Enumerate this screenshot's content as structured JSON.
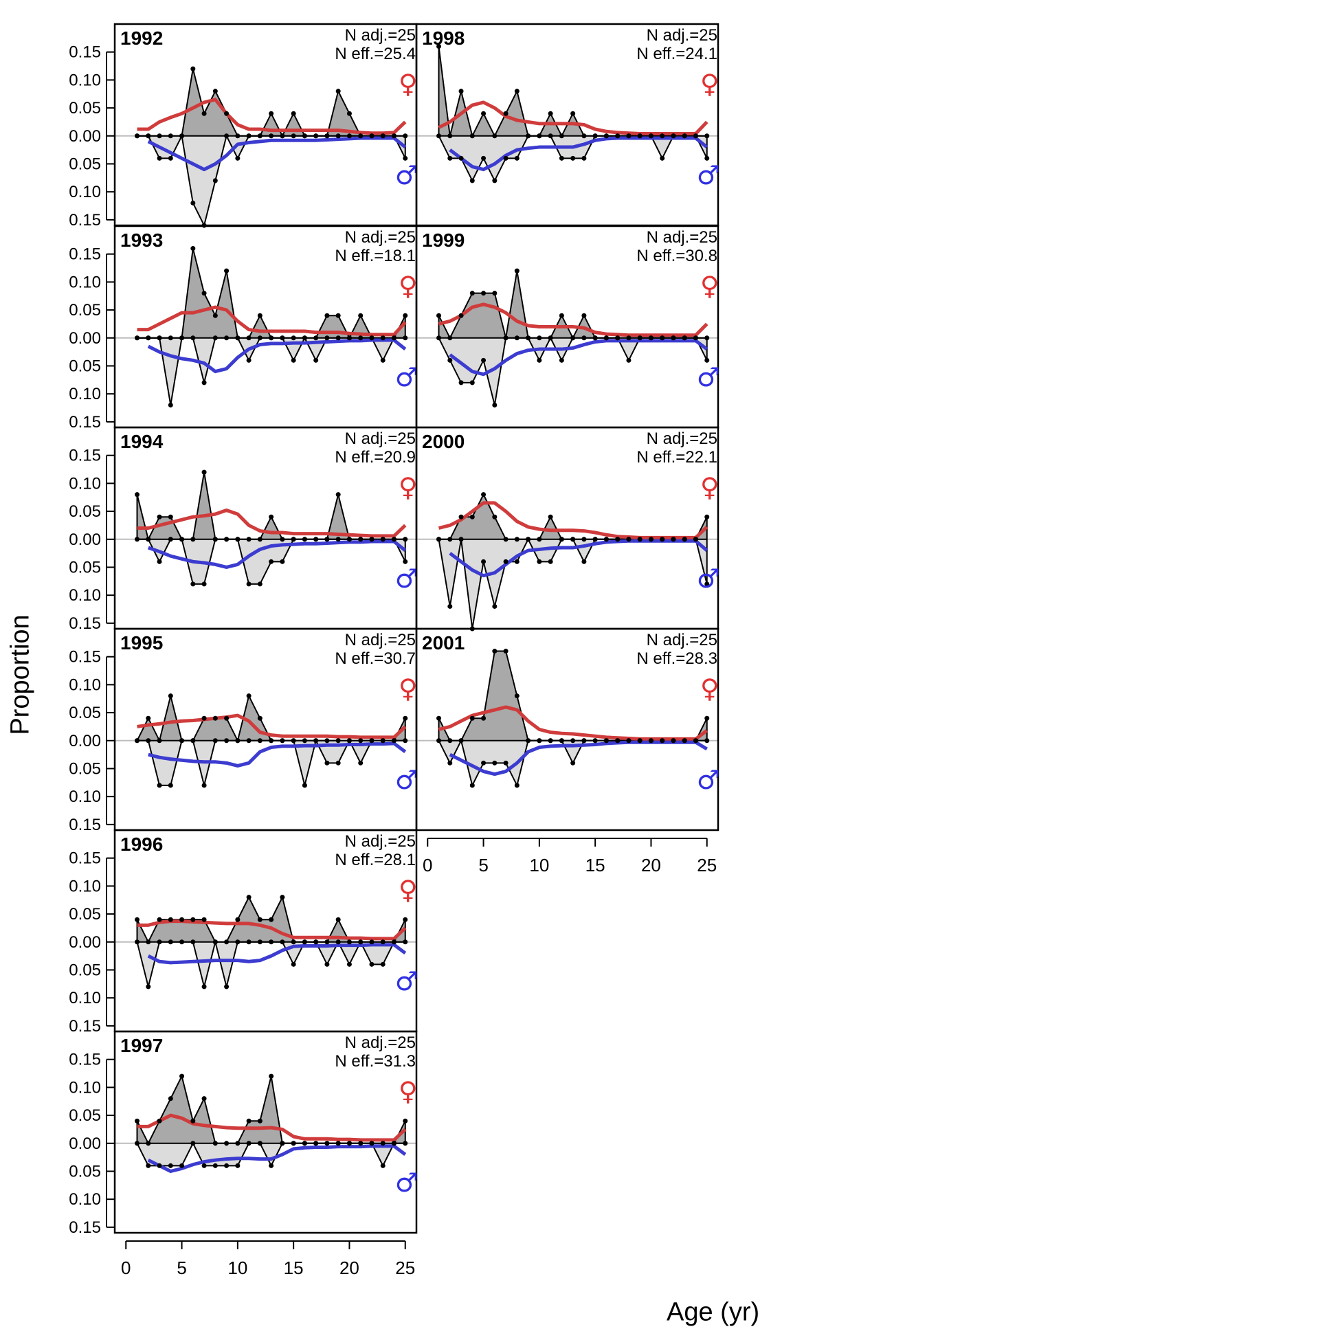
{
  "chart_data": {
    "type": "line",
    "xlabel": "Age (yr)",
    "ylabel": "Proportion",
    "x_ticks": [
      0,
      5,
      10,
      15,
      20,
      25
    ],
    "y_ticks": [
      "0.15",
      "0.10",
      "0.05",
      "0.00",
      "0.05",
      "0.10",
      "0.15"
    ],
    "ylim": [
      -0.16,
      0.2
    ],
    "xlim": [
      -1,
      26
    ],
    "female_symbol": "♀",
    "male_symbol": "♂",
    "colors": {
      "female_line": "#d03c3c",
      "male_line": "#3c3cd0",
      "female_fill": "#a9a9a9",
      "male_fill": "#dcdcdc",
      "female_symbol": "#e23030",
      "male_symbol": "#3030e2",
      "zero_line": "#bdbdbd"
    },
    "ages": [
      1,
      2,
      3,
      4,
      5,
      6,
      7,
      8,
      9,
      10,
      11,
      12,
      13,
      14,
      15,
      16,
      17,
      18,
      19,
      20,
      21,
      22,
      23,
      24,
      25
    ],
    "panels": [
      {
        "year": "1992",
        "n_adj": "N adj.=25",
        "n_eff": "N eff.=25.4",
        "female_obs": [
          0,
          0,
          0,
          0,
          0,
          0.12,
          0.04,
          0.08,
          0.04,
          0,
          0,
          0,
          0.04,
          0,
          0.04,
          0,
          0,
          0,
          0.08,
          0.04,
          0,
          0,
          0,
          0,
          0
        ],
        "male_obs": [
          0,
          0,
          0.04,
          0.04,
          0,
          0.12,
          0.16,
          0.08,
          0,
          0.04,
          0,
          0,
          0,
          0,
          0,
          0,
          0,
          0,
          0,
          0,
          0,
          0,
          0,
          0,
          0.04
        ],
        "female_exp": [
          0.012,
          0.012,
          0.025,
          0.033,
          0.04,
          0.05,
          0.06,
          0.065,
          0.04,
          0.02,
          0.012,
          0.012,
          0.01,
          0.01,
          0.01,
          0.01,
          0.01,
          0.01,
          0.01,
          0.008,
          0.006,
          0.005,
          0.005,
          0.006,
          0.025
        ],
        "male_exp": [
          null,
          0.01,
          0.02,
          0.03,
          0.04,
          0.05,
          0.06,
          0.05,
          0.035,
          0.015,
          0.012,
          0.01,
          0.008,
          0.008,
          0.008,
          0.008,
          0.008,
          0.007,
          0.006,
          0.005,
          0.004,
          0.004,
          0.004,
          0.004,
          0.02
        ]
      },
      {
        "year": "1993",
        "n_adj": "N adj.=25",
        "n_eff": "N eff.=18.1",
        "female_obs": [
          0,
          0,
          0,
          0,
          0,
          0.16,
          0.08,
          0.04,
          0.12,
          0,
          0,
          0.04,
          0,
          0,
          0,
          0,
          0,
          0.04,
          0.04,
          0,
          0.04,
          0,
          0,
          0,
          0.04
        ],
        "male_obs": [
          0,
          0,
          0,
          0.12,
          0,
          0,
          0.08,
          0,
          0,
          0,
          0.04,
          0,
          0,
          0,
          0.04,
          0,
          0.04,
          0,
          0,
          0,
          0,
          0,
          0.04,
          0,
          0
        ],
        "female_exp": [
          0.015,
          0.015,
          0.025,
          0.035,
          0.045,
          0.045,
          0.05,
          0.055,
          0.05,
          0.03,
          0.015,
          0.012,
          0.012,
          0.012,
          0.012,
          0.012,
          0.01,
          0.01,
          0.01,
          0.008,
          0.007,
          0.006,
          0.006,
          0.006,
          0.028
        ],
        "male_exp": [
          null,
          0.015,
          0.025,
          0.032,
          0.037,
          0.04,
          0.045,
          0.06,
          0.055,
          0.035,
          0.02,
          0.012,
          0.01,
          0.01,
          0.009,
          0.009,
          0.008,
          0.007,
          0.006,
          0.005,
          0.005,
          0.004,
          0.004,
          0.004,
          0.02
        ]
      },
      {
        "year": "1994",
        "n_adj": "N adj.=25",
        "n_eff": "N eff.=20.9",
        "female_obs": [
          0.08,
          0,
          0.04,
          0.04,
          0,
          0,
          0.12,
          0,
          0,
          0,
          0,
          0,
          0.04,
          0,
          0,
          0,
          0,
          0,
          0.08,
          0,
          0,
          0,
          0,
          0,
          0
        ],
        "male_obs": [
          0,
          0,
          0.04,
          0,
          0,
          0.08,
          0.08,
          0,
          0,
          0,
          0.08,
          0.08,
          0.04,
          0.04,
          0,
          0,
          0,
          0,
          0,
          0,
          0,
          0,
          0,
          0,
          0.04
        ],
        "female_exp": [
          0.02,
          0.02,
          0.025,
          0.03,
          0.035,
          0.04,
          0.042,
          0.045,
          0.052,
          0.045,
          0.025,
          0.015,
          0.012,
          0.012,
          0.01,
          0.01,
          0.01,
          0.01,
          0.009,
          0.008,
          0.007,
          0.006,
          0.006,
          0.006,
          0.025
        ],
        "male_exp": [
          null,
          0.015,
          0.022,
          0.03,
          0.035,
          0.04,
          0.042,
          0.045,
          0.05,
          0.045,
          0.03,
          0.018,
          0.012,
          0.01,
          0.009,
          0.008,
          0.008,
          0.007,
          0.006,
          0.005,
          0.005,
          0.004,
          0.004,
          0.004,
          0.02
        ]
      },
      {
        "year": "1995",
        "n_adj": "N adj.=25",
        "n_eff": "N eff.=30.7",
        "female_obs": [
          0,
          0.04,
          0,
          0.08,
          0,
          0,
          0.04,
          0.04,
          0.04,
          0,
          0.08,
          0.04,
          0,
          0,
          0,
          0,
          0,
          0,
          0,
          0,
          0,
          0,
          0,
          0,
          0.04
        ],
        "male_obs": [
          0,
          0,
          0.08,
          0.08,
          0,
          0,
          0.08,
          0,
          0,
          0,
          0,
          0,
          0,
          0,
          0,
          0.08,
          0,
          0.04,
          0.04,
          0,
          0.04,
          0,
          0,
          0,
          0
        ],
        "female_exp": [
          0.025,
          0.028,
          0.03,
          0.033,
          0.035,
          0.036,
          0.038,
          0.04,
          0.042,
          0.045,
          0.035,
          0.015,
          0.01,
          0.008,
          0.008,
          0.008,
          0.008,
          0.008,
          0.007,
          0.007,
          0.006,
          0.006,
          0.006,
          0.006,
          0.025
        ],
        "male_exp": [
          null,
          0.025,
          0.03,
          0.033,
          0.035,
          0.037,
          0.038,
          0.038,
          0.04,
          0.045,
          0.04,
          0.02,
          0.012,
          0.01,
          0.01,
          0.009,
          0.009,
          0.008,
          0.008,
          0.007,
          0.007,
          0.006,
          0.006,
          0.005,
          0.02
        ]
      },
      {
        "year": "1996",
        "n_adj": "N adj.=25",
        "n_eff": "N eff.=28.1",
        "female_obs": [
          0.04,
          0,
          0.04,
          0.04,
          0.04,
          0.04,
          0.04,
          0,
          0,
          0.04,
          0.08,
          0.04,
          0.04,
          0.08,
          0,
          0,
          0,
          0,
          0.04,
          0,
          0,
          0,
          0,
          0,
          0.04
        ],
        "male_obs": [
          0,
          0.08,
          0,
          0,
          0,
          0,
          0.08,
          0,
          0.08,
          0,
          0,
          0,
          0,
          0,
          0.04,
          0,
          0,
          0.04,
          0,
          0.04,
          0,
          0.04,
          0.04,
          0,
          0
        ],
        "female_exp": [
          0.03,
          0.03,
          0.035,
          0.037,
          0.037,
          0.036,
          0.035,
          0.034,
          0.033,
          0.033,
          0.033,
          0.03,
          0.025,
          0.015,
          0.008,
          0.008,
          0.008,
          0.008,
          0.008,
          0.007,
          0.007,
          0.006,
          0.006,
          0.006,
          0.025
        ],
        "male_exp": [
          null,
          0.025,
          0.035,
          0.037,
          0.036,
          0.035,
          0.034,
          0.033,
          0.033,
          0.033,
          0.035,
          0.033,
          0.025,
          0.015,
          0.008,
          0.007,
          0.007,
          0.007,
          0.006,
          0.006,
          0.006,
          0.005,
          0.005,
          0.005,
          0.02
        ]
      },
      {
        "year": "1997",
        "n_adj": "N adj.=25",
        "n_eff": "N eff.=31.3",
        "female_obs": [
          0.04,
          0,
          0.04,
          0.08,
          0.12,
          0.04,
          0.08,
          0,
          0,
          0,
          0.04,
          0.04,
          0.12,
          0,
          0,
          0,
          0,
          0,
          0,
          0,
          0,
          0,
          0,
          0,
          0.04
        ],
        "male_obs": [
          0,
          0.04,
          0.04,
          0.04,
          0.04,
          0,
          0.04,
          0.04,
          0.04,
          0.04,
          0,
          0,
          0.04,
          0,
          0,
          0,
          0,
          0,
          0,
          0,
          0,
          0,
          0.04,
          0,
          0
        ],
        "female_exp": [
          0.03,
          0.03,
          0.04,
          0.05,
          0.045,
          0.035,
          0.032,
          0.03,
          0.028,
          0.027,
          0.027,
          0.027,
          0.028,
          0.025,
          0.012,
          0.008,
          0.008,
          0.008,
          0.007,
          0.007,
          0.006,
          0.006,
          0.006,
          0.006,
          0.025
        ],
        "male_exp": [
          null,
          0.03,
          0.04,
          0.05,
          0.045,
          0.038,
          0.033,
          0.03,
          0.028,
          0.027,
          0.027,
          0.028,
          0.028,
          0.02,
          0.01,
          0.008,
          0.007,
          0.007,
          0.006,
          0.006,
          0.006,
          0.005,
          0.005,
          0.005,
          0.02
        ]
      },
      {
        "year": "1998",
        "n_adj": "N adj.=25",
        "n_eff": "N eff.=24.1",
        "female_obs": [
          0.16,
          0,
          0.08,
          0,
          0.04,
          0,
          0.04,
          0.08,
          0,
          0,
          0.04,
          0,
          0.04,
          0,
          0,
          0,
          0,
          0,
          0,
          0,
          0,
          0,
          0,
          0,
          0
        ],
        "male_obs": [
          0,
          0.04,
          0.04,
          0.08,
          0.04,
          0.08,
          0.04,
          0.04,
          0,
          0,
          0,
          0.04,
          0.04,
          0.04,
          0,
          0,
          0,
          0,
          0,
          0,
          0.04,
          0,
          0,
          0,
          0.04
        ],
        "female_exp": [
          0.015,
          0.025,
          0.04,
          0.055,
          0.06,
          0.05,
          0.035,
          0.028,
          0.025,
          0.022,
          0.022,
          0.022,
          0.022,
          0.02,
          0.012,
          0.008,
          0.006,
          0.005,
          0.004,
          0.004,
          0.004,
          0.004,
          0.004,
          0.004,
          0.025
        ],
        "male_exp": [
          null,
          0.025,
          0.04,
          0.055,
          0.06,
          0.05,
          0.035,
          0.025,
          0.022,
          0.02,
          0.02,
          0.02,
          0.02,
          0.015,
          0.008,
          0.005,
          0.004,
          0.004,
          0.004,
          0.004,
          0.004,
          0.004,
          0.004,
          0.004,
          0.02
        ]
      },
      {
        "year": "1999",
        "n_adj": "N adj.=25",
        "n_eff": "N eff.=30.8",
        "female_obs": [
          0.04,
          0,
          0.04,
          0.08,
          0.08,
          0.08,
          0,
          0.12,
          0,
          0,
          0,
          0.04,
          0,
          0.04,
          0,
          0,
          0,
          0,
          0,
          0,
          0,
          0,
          0,
          0,
          0
        ],
        "male_obs": [
          0,
          0.04,
          0.08,
          0.08,
          0.04,
          0.12,
          0,
          0,
          0,
          0.04,
          0,
          0.04,
          0,
          0,
          0,
          0,
          0,
          0.04,
          0,
          0,
          0,
          0,
          0,
          0,
          0.04
        ],
        "female_exp": [
          0.025,
          0.03,
          0.04,
          0.055,
          0.06,
          0.055,
          0.045,
          0.03,
          0.022,
          0.02,
          0.02,
          0.02,
          0.02,
          0.018,
          0.01,
          0.007,
          0.006,
          0.005,
          0.005,
          0.005,
          0.005,
          0.005,
          0.005,
          0.005,
          0.025
        ],
        "male_exp": [
          null,
          0.03,
          0.045,
          0.06,
          0.065,
          0.055,
          0.04,
          0.028,
          0.022,
          0.02,
          0.02,
          0.02,
          0.018,
          0.012,
          0.007,
          0.005,
          0.005,
          0.005,
          0.005,
          0.005,
          0.005,
          0.005,
          0.005,
          0.005,
          0.02
        ]
      },
      {
        "year": "2000",
        "n_adj": "N adj.=25",
        "n_eff": "N eff.=22.1",
        "female_obs": [
          0,
          0,
          0.04,
          0.04,
          0.08,
          0.04,
          0,
          0,
          0,
          0,
          0.04,
          0,
          0,
          0,
          0,
          0,
          0,
          0,
          0,
          0,
          0,
          0,
          0,
          0,
          0.04
        ],
        "male_obs": [
          0,
          0.12,
          0,
          0.16,
          0.04,
          0.12,
          0.04,
          0.04,
          0,
          0.04,
          0.04,
          0,
          0,
          0.04,
          0,
          0,
          0,
          0,
          0,
          0,
          0,
          0,
          0,
          0,
          0.08
        ],
        "female_exp": [
          0.02,
          0.025,
          0.035,
          0.05,
          0.065,
          0.065,
          0.05,
          0.032,
          0.022,
          0.018,
          0.016,
          0.016,
          0.016,
          0.015,
          0.012,
          0.008,
          0.005,
          0.004,
          0.003,
          0.003,
          0.003,
          0.003,
          0.003,
          0.003,
          0.022
        ],
        "male_exp": [
          null,
          0.025,
          0.04,
          0.055,
          0.065,
          0.06,
          0.045,
          0.03,
          0.02,
          0.018,
          0.016,
          0.015,
          0.015,
          0.012,
          0.008,
          0.005,
          0.004,
          0.003,
          0.003,
          0.003,
          0.003,
          0.003,
          0.003,
          0.003,
          0.02
        ]
      },
      {
        "year": "2001",
        "n_adj": "N adj.=25",
        "n_eff": "N eff.=28.3",
        "female_obs": [
          0.04,
          0,
          0,
          0.04,
          0.04,
          0.16,
          0.16,
          0.08,
          0,
          0,
          0,
          0,
          0,
          0,
          0,
          0,
          0,
          0,
          0,
          0,
          0,
          0,
          0,
          0,
          0.04
        ],
        "male_obs": [
          0,
          0.04,
          0,
          0.08,
          0.04,
          0.04,
          0.04,
          0.08,
          0,
          0,
          0,
          0,
          0.04,
          0,
          0,
          0,
          0,
          0,
          0,
          0,
          0,
          0,
          0,
          0,
          0
        ],
        "female_exp": [
          0.02,
          0.025,
          0.035,
          0.045,
          0.05,
          0.055,
          0.06,
          0.055,
          0.035,
          0.02,
          0.015,
          0.013,
          0.012,
          0.01,
          0.008,
          0.006,
          0.005,
          0.004,
          0.003,
          0.003,
          0.003,
          0.003,
          0.003,
          0.003,
          0.018
        ],
        "male_exp": [
          null,
          0.025,
          0.035,
          0.045,
          0.055,
          0.06,
          0.055,
          0.04,
          0.02,
          0.012,
          0.01,
          0.009,
          0.009,
          0.008,
          0.007,
          0.005,
          0.004,
          0.003,
          0.003,
          0.003,
          0.003,
          0.003,
          0.003,
          0.003,
          0.015
        ]
      }
    ]
  }
}
